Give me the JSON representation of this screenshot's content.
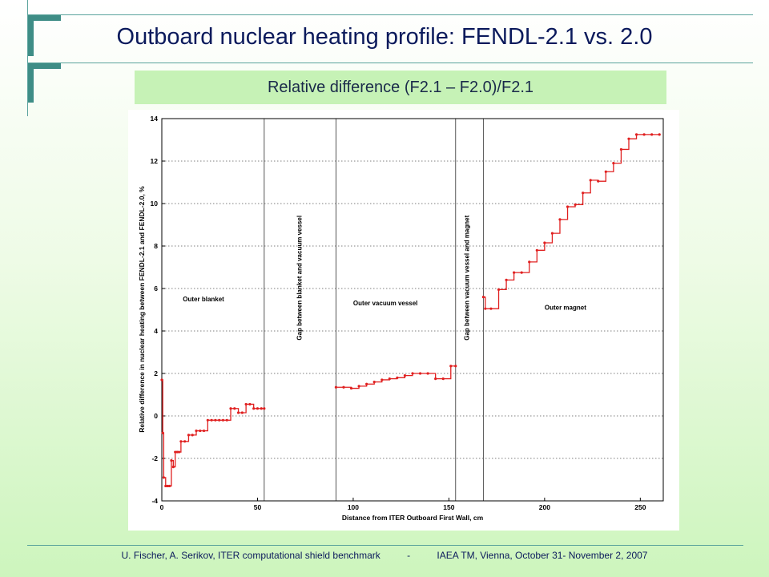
{
  "slide": {
    "title": "Outboard nuclear heating profile: FENDL-2.1 vs. 2.0",
    "subtitle": "Relative difference (F2.1 – F2.0)/F2.1",
    "footer": "U. Fischer, A. Serikov, ITER computational shield benchmark          -          IAEA TM, Vienna, October 31- November 2, 2007",
    "accent_color": "#3e8d86",
    "background_bottom": "#cdf5bd"
  },
  "chart_data": {
    "type": "line",
    "xlabel": "Distance from ITER Outboard First Wall, cm",
    "ylabel": "Relative difference in nuclear heating between FENDL-2.1 and FENDL-2.0, %",
    "xlim": [
      0,
      262
    ],
    "ylim": [
      -4,
      14
    ],
    "xticks": [
      0,
      50,
      100,
      150,
      200,
      250
    ],
    "yticks": [
      -4,
      -2,
      0,
      2,
      4,
      6,
      8,
      10,
      12,
      14
    ],
    "grid": "horizontal dotted",
    "series_color": "#e02020",
    "boundaries": [
      53.5,
      91,
      153.5,
      168
    ],
    "region_labels": [
      {
        "text": "Outer blanket",
        "x": 11,
        "y": 5.4,
        "rotate": false
      },
      {
        "text": "Gap between blanket and vacuum vessel",
        "x": 73,
        "y": 6.5,
        "rotate": true
      },
      {
        "text": "Outer vacuum vessel",
        "x": 100,
        "y": 5.2,
        "rotate": false
      },
      {
        "text": "Gap between vacuum vessel and magnet",
        "x": 160.5,
        "y": 6.5,
        "rotate": true
      },
      {
        "text": "Outer magnet",
        "x": 200,
        "y": 5.0,
        "rotate": false
      }
    ],
    "segments": [
      {
        "x": [
          0,
          0.5,
          1,
          2,
          3,
          4,
          5,
          6,
          7,
          8,
          9,
          10,
          12,
          14,
          16,
          18,
          20,
          22,
          24,
          26,
          28,
          30,
          32,
          34,
          36,
          38,
          40,
          42,
          44,
          46,
          48,
          50,
          52,
          53.5
        ],
        "y": [
          1.7,
          -0.8,
          -2.9,
          -3.3,
          -3.3,
          -3.3,
          -2.1,
          -2.4,
          -1.7,
          -1.7,
          -1.7,
          -1.2,
          -1.2,
          -0.9,
          -0.9,
          -0.7,
          -0.7,
          -0.7,
          -0.2,
          -0.2,
          -0.2,
          -0.2,
          -0.2,
          -0.2,
          0.35,
          0.35,
          0.15,
          0.15,
          0.55,
          0.55,
          0.35,
          0.35,
          0.35,
          0.35
        ]
      },
      {
        "x": [
          91,
          95,
          99,
          103,
          107,
          111,
          115,
          119,
          123,
          127,
          131,
          135,
          139,
          143,
          147,
          151,
          153.5
        ],
        "y": [
          1.35,
          1.35,
          1.3,
          1.4,
          1.5,
          1.6,
          1.7,
          1.75,
          1.8,
          1.9,
          2.0,
          2.0,
          2.0,
          1.75,
          1.75,
          2.35,
          2.35
        ]
      },
      {
        "x": [
          168,
          169,
          172,
          176,
          180,
          184,
          188,
          192,
          196,
          200,
          204,
          208,
          212,
          216,
          220,
          224,
          228,
          232,
          236,
          240,
          244,
          248,
          252,
          256,
          260
        ],
        "y": [
          5.6,
          5.05,
          5.05,
          5.95,
          6.4,
          6.75,
          6.75,
          7.25,
          7.8,
          8.15,
          8.6,
          9.25,
          9.85,
          9.95,
          10.5,
          11.1,
          11.05,
          11.5,
          11.9,
          12.55,
          13.05,
          13.25,
          13.25,
          13.25,
          13.25
        ]
      }
    ]
  }
}
